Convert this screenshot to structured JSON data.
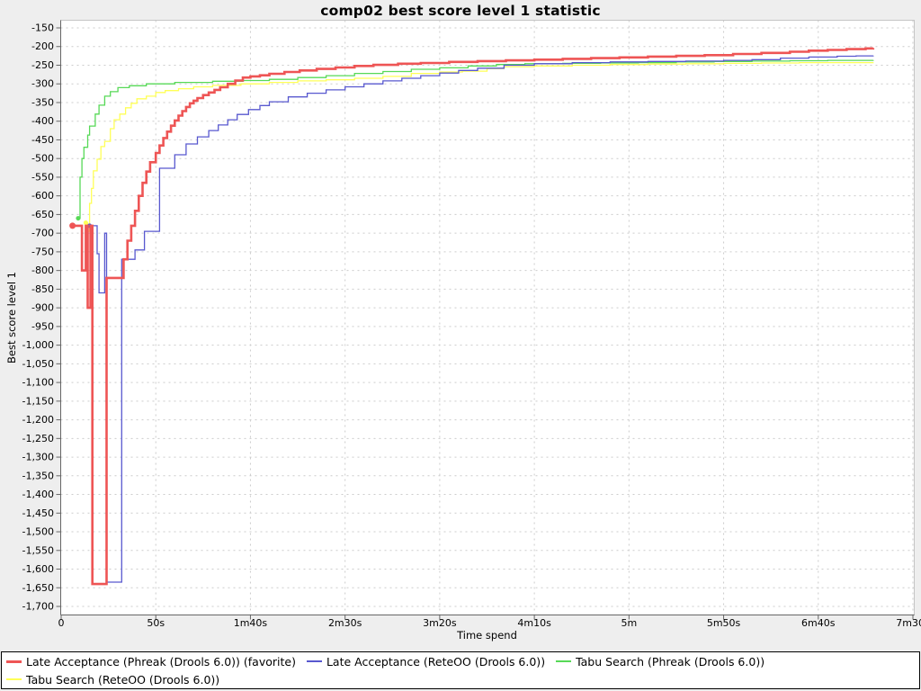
{
  "colors": {
    "background": "#eeeeee",
    "plot_background": "#ffffff",
    "gridline": "#cccccc",
    "axis": "#666666",
    "plot_border": "#c5c5c5",
    "legend_border": "#000000",
    "legend_background": "#ffffff",
    "text": "#000000"
  },
  "chart_data": {
    "type": "line",
    "step_interpolation": "step-after",
    "title": "comp02 best score level 1 statistic",
    "xlabel": "Time spend",
    "ylabel": "Best score level 1",
    "x_unit": "seconds",
    "xlim": [
      0,
      450
    ],
    "ylim": [
      -1722,
      -128
    ],
    "grid": true,
    "legend_position": "bottom",
    "x_ticks": {
      "values": [
        0,
        50,
        100,
        150,
        200,
        250,
        300,
        350,
        400,
        450
      ],
      "labels": [
        "0",
        "50s",
        "1m40s",
        "2m30s",
        "3m20s",
        "4m10s",
        "5m",
        "5m50s",
        "6m40s",
        "7m30s"
      ]
    },
    "y_ticks": {
      "values": [
        -150,
        -200,
        -250,
        -300,
        -350,
        -400,
        -450,
        -500,
        -550,
        -600,
        -650,
        -700,
        -750,
        -800,
        -850,
        -900,
        -950,
        -1000,
        -1050,
        -1100,
        -1150,
        -1200,
        -1250,
        -1300,
        -1350,
        -1400,
        -1450,
        -1500,
        -1550,
        -1600,
        -1650,
        -1700
      ],
      "labels": [
        "-150",
        "-200",
        "-250",
        "-300",
        "-350",
        "-400",
        "-450",
        "-500",
        "-550",
        "-600",
        "-650",
        "-700",
        "-750",
        "-800",
        "-850",
        "-900",
        "-950",
        "-1,000",
        "-1,050",
        "-1,100",
        "-1,150",
        "-1,200",
        "-1,250",
        "-1,300",
        "-1,350",
        "-1,400",
        "-1,450",
        "-1,500",
        "-1,550",
        "-1,600",
        "-1,650",
        "-1,700"
      ]
    },
    "series": [
      {
        "key": "late-acceptance-phreak",
        "name": "Late Acceptance (Phreak (Drools 6.0)) (favorite)",
        "color": "#ee5555",
        "stroke_width": 2.6,
        "favorite": true,
        "points": [
          [
            6,
            -680
          ],
          [
            11,
            -800
          ],
          [
            13,
            -680
          ],
          [
            14,
            -900
          ],
          [
            15.5,
            -680
          ],
          [
            16.5,
            -1640
          ],
          [
            24,
            -820
          ],
          [
            33,
            -770
          ],
          [
            35,
            -720
          ],
          [
            37,
            -680
          ],
          [
            39,
            -640
          ],
          [
            41,
            -600
          ],
          [
            43,
            -565
          ],
          [
            45,
            -535
          ],
          [
            47,
            -510
          ],
          [
            50,
            -485
          ],
          [
            52,
            -465
          ],
          [
            54,
            -445
          ],
          [
            56,
            -428
          ],
          [
            58,
            -412
          ],
          [
            60,
            -398
          ],
          [
            62,
            -385
          ],
          [
            64,
            -373
          ],
          [
            66,
            -362
          ],
          [
            68,
            -352
          ],
          [
            70,
            -345
          ],
          [
            72,
            -338
          ],
          [
            75,
            -330
          ],
          [
            78,
            -323
          ],
          [
            81,
            -316
          ],
          [
            84,
            -309
          ],
          [
            88,
            -300
          ],
          [
            92,
            -291
          ],
          [
            96,
            -283
          ],
          [
            100,
            -280
          ],
          [
            105,
            -277
          ],
          [
            110,
            -273
          ],
          [
            118,
            -268
          ],
          [
            126,
            -264
          ],
          [
            135,
            -260
          ],
          [
            145,
            -256
          ],
          [
            155,
            -252
          ],
          [
            165,
            -249
          ],
          [
            178,
            -246
          ],
          [
            190,
            -244
          ],
          [
            205,
            -241
          ],
          [
            220,
            -239
          ],
          [
            235,
            -237
          ],
          [
            250,
            -235
          ],
          [
            265,
            -233
          ],
          [
            280,
            -231
          ],
          [
            295,
            -229
          ],
          [
            310,
            -227
          ],
          [
            325,
            -225
          ],
          [
            340,
            -223
          ],
          [
            355,
            -220
          ],
          [
            370,
            -217
          ],
          [
            385,
            -214
          ],
          [
            395,
            -211
          ],
          [
            405,
            -209
          ],
          [
            415,
            -207
          ],
          [
            425,
            -205
          ],
          [
            429,
            -204
          ]
        ]
      },
      {
        "key": "late-acceptance-reteoo",
        "name": "Late Acceptance (ReteOO (Drools 6.0))",
        "color": "#5858cf",
        "stroke_width": 1.3,
        "favorite": false,
        "points": [
          [
            15,
            -680
          ],
          [
            19,
            -755
          ],
          [
            20,
            -860
          ],
          [
            23,
            -700
          ],
          [
            24,
            -1635
          ],
          [
            32,
            -770
          ],
          [
            39,
            -745
          ],
          [
            44,
            -695
          ],
          [
            52,
            -526
          ],
          [
            60,
            -490
          ],
          [
            66,
            -461
          ],
          [
            72,
            -442
          ],
          [
            78,
            -425
          ],
          [
            83,
            -410
          ],
          [
            88,
            -396
          ],
          [
            93,
            -382
          ],
          [
            99,
            -369
          ],
          [
            105,
            -358
          ],
          [
            110,
            -348
          ],
          [
            120,
            -335
          ],
          [
            130,
            -325
          ],
          [
            140,
            -316
          ],
          [
            150,
            -308
          ],
          [
            160,
            -300
          ],
          [
            170,
            -292
          ],
          [
            180,
            -285
          ],
          [
            190,
            -278
          ],
          [
            200,
            -271
          ],
          [
            210,
            -264
          ],
          [
            220,
            -258
          ],
          [
            234,
            -250
          ],
          [
            250,
            -246
          ],
          [
            270,
            -243
          ],
          [
            290,
            -241
          ],
          [
            310,
            -240
          ],
          [
            330,
            -239
          ],
          [
            350,
            -237
          ],
          [
            365,
            -235
          ],
          [
            380,
            -231
          ],
          [
            395,
            -228
          ],
          [
            410,
            -226
          ],
          [
            420,
            -225
          ],
          [
            429,
            -224
          ]
        ]
      },
      {
        "key": "tabu-search-phreak",
        "name": "Tabu Search (Phreak (Drools 6.0))",
        "color": "#57d957",
        "stroke_width": 1.3,
        "favorite": false,
        "points": [
          [
            9,
            -660
          ],
          [
            10,
            -550
          ],
          [
            11,
            -500
          ],
          [
            12,
            -470
          ],
          [
            14,
            -437
          ],
          [
            15,
            -413
          ],
          [
            18,
            -381
          ],
          [
            20,
            -357
          ],
          [
            23,
            -333
          ],
          [
            26,
            -321
          ],
          [
            30,
            -310
          ],
          [
            36,
            -305
          ],
          [
            45,
            -300
          ],
          [
            60,
            -296
          ],
          [
            80,
            -293
          ],
          [
            96,
            -291
          ],
          [
            110,
            -288
          ],
          [
            125,
            -283
          ],
          [
            140,
            -278
          ],
          [
            155,
            -272
          ],
          [
            170,
            -267
          ],
          [
            185,
            -261
          ],
          [
            200,
            -257
          ],
          [
            215,
            -252
          ],
          [
            230,
            -248
          ],
          [
            245,
            -246
          ],
          [
            265,
            -245
          ],
          [
            285,
            -244
          ],
          [
            305,
            -243
          ],
          [
            325,
            -241
          ],
          [
            345,
            -240
          ],
          [
            365,
            -239
          ],
          [
            385,
            -238
          ],
          [
            405,
            -237
          ],
          [
            429,
            -236
          ]
        ]
      },
      {
        "key": "tabu-search-reteoo",
        "name": "Tabu Search (ReteOO (Drools 6.0))",
        "color": "#ffff57",
        "stroke_width": 1.3,
        "favorite": false,
        "points": [
          [
            13,
            -672
          ],
          [
            14,
            -695
          ],
          [
            15,
            -620
          ],
          [
            16,
            -580
          ],
          [
            17,
            -533
          ],
          [
            19,
            -502
          ],
          [
            21,
            -468
          ],
          [
            23,
            -454
          ],
          [
            26,
            -420
          ],
          [
            28,
            -396
          ],
          [
            31,
            -381
          ],
          [
            34,
            -364
          ],
          [
            37,
            -352
          ],
          [
            40,
            -340
          ],
          [
            45,
            -333
          ],
          [
            50,
            -323
          ],
          [
            55,
            -318
          ],
          [
            62,
            -313
          ],
          [
            70,
            -308
          ],
          [
            80,
            -304
          ],
          [
            95,
            -300
          ],
          [
            110,
            -296
          ],
          [
            125,
            -292
          ],
          [
            140,
            -289
          ],
          [
            155,
            -285
          ],
          [
            170,
            -280
          ],
          [
            185,
            -272
          ],
          [
            200,
            -268
          ],
          [
            212,
            -266
          ],
          [
            225,
            -259
          ],
          [
            234,
            -254
          ],
          [
            250,
            -252
          ],
          [
            270,
            -250
          ],
          [
            290,
            -248
          ],
          [
            310,
            -247
          ],
          [
            330,
            -246
          ],
          [
            350,
            -245
          ],
          [
            370,
            -244
          ],
          [
            390,
            -243
          ],
          [
            410,
            -243
          ],
          [
            429,
            -242
          ]
        ]
      }
    ]
  }
}
